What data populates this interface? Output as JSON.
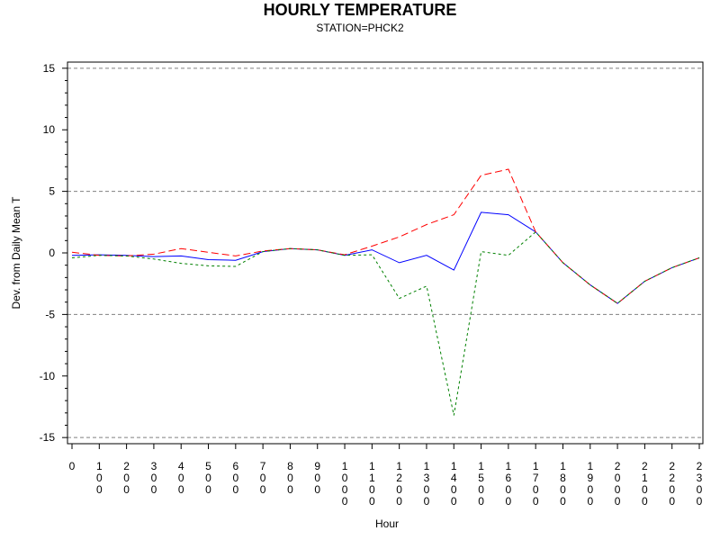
{
  "chart_data": {
    "type": "line",
    "title": "HOURLY TEMPERATURE",
    "subtitle": "STATION=PHCK2",
    "xlabel": "Hour",
    "ylabel": "Dev. from Daily Mean T",
    "x": [
      0,
      100,
      200,
      300,
      400,
      500,
      600,
      700,
      800,
      900,
      1000,
      1100,
      1200,
      1300,
      1400,
      1500,
      1600,
      1700,
      1800,
      1900,
      2000,
      2100,
      2200,
      2300
    ],
    "x_tick_labels": [
      "0",
      "100",
      "200",
      "300",
      "400",
      "500",
      "600",
      "700",
      "800",
      "900",
      "1000",
      "1100",
      "1200",
      "1300",
      "1400",
      "1500",
      "1600",
      "1700",
      "1800",
      "1900",
      "2000",
      "2100",
      "2200",
      "2300"
    ],
    "ylim": [
      -15.5,
      15.5
    ],
    "y_ticks": [
      -15,
      -10,
      -5,
      0,
      5,
      10,
      15
    ],
    "y_tick_labels": [
      "-15",
      "-10",
      "-5",
      "0",
      "5",
      "10",
      "15"
    ],
    "gridlines_y": [
      -15,
      -5,
      5,
      15
    ],
    "series": [
      {
        "color": "#0000ff",
        "dash": "solid",
        "values": [
          -0.2,
          -0.15,
          -0.2,
          -0.3,
          -0.25,
          -0.55,
          -0.6,
          0.1,
          0.35,
          0.25,
          -0.2,
          0.25,
          -0.8,
          -0.2,
          -1.4,
          3.3,
          3.1,
          1.7,
          -0.8,
          -2.6,
          -4.1,
          -2.3,
          -1.2,
          -0.4
        ]
      },
      {
        "color": "#ff0000",
        "dash": "dashed",
        "values": [
          0.05,
          -0.2,
          -0.25,
          -0.1,
          0.35,
          0.05,
          -0.25,
          0.15,
          0.35,
          0.25,
          -0.15,
          0.55,
          1.3,
          2.3,
          3.1,
          6.3,
          6.8,
          1.7,
          -0.8,
          -2.6,
          -4.1,
          -2.3,
          -1.2,
          -0.4
        ]
      },
      {
        "color": "#008000",
        "dash": "dotted",
        "values": [
          -0.4,
          -0.2,
          -0.25,
          -0.5,
          -0.85,
          -1.05,
          -1.1,
          0.1,
          0.35,
          0.25,
          -0.2,
          -0.15,
          -3.7,
          -2.7,
          -13.2,
          0.1,
          -0.2,
          1.7,
          -0.8,
          -2.6,
          -4.1,
          -2.3,
          -1.2,
          -0.4
        ]
      }
    ]
  }
}
